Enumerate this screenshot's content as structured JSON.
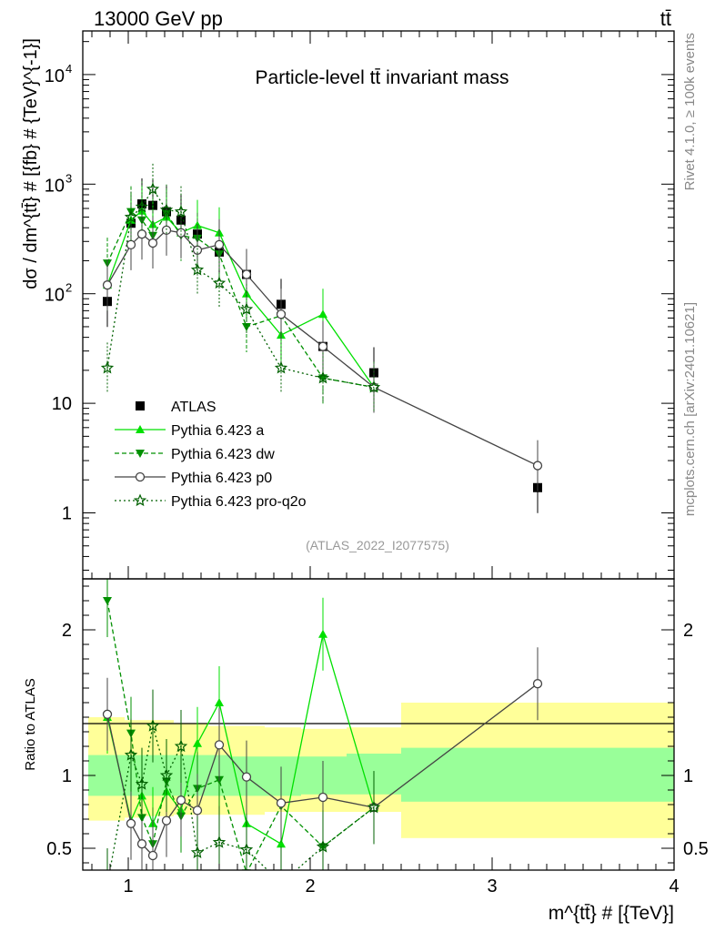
{
  "header": {
    "left": "13000 GeV pp",
    "right": "tt̄"
  },
  "side_labels": {
    "rivet": "Rivet 4.1.0, ≥ 100k events",
    "mcplots": "mcplots.cern.ch [arXiv:2401.10621]"
  },
  "chart_data": {
    "type": "scatter",
    "title": "Particle-level tt̄ invariant mass",
    "analysis_label": "(ATLAS_2022_I2077575)",
    "xlabel": "m^{tt̄} # [{TeV}]",
    "x_ticks": [
      "1",
      "2",
      "3",
      "4"
    ],
    "xlim": [
      0.75,
      4.0
    ],
    "grid": false,
    "legend_position": "left-middle",
    "main": {
      "ylabel": "dσ / dm^{tt̄} # [{fb} # {TeV}^{-1}]",
      "yscale": "log",
      "ylim": [
        0.25,
        25000
      ],
      "y_tick_labels": [
        "1",
        "10",
        "10^2",
        "10^3",
        "10^4"
      ],
      "series": [
        {
          "name": "ATLAS",
          "color": "#000000",
          "marker": "square",
          "x": [
            0.885,
            1.015,
            1.075,
            1.135,
            1.21,
            1.29,
            1.38,
            1.5,
            1.65,
            1.84,
            2.07,
            2.35,
            3.25
          ],
          "y": [
            85,
            440,
            660,
            640,
            560,
            470,
            350,
            240,
            150,
            80,
            33,
            19,
            1.7
          ]
        },
        {
          "name": "Pythia 6.423 a",
          "color": "#00e000",
          "marker": "triangle-up",
          "line": "solid",
          "x": [
            0.885,
            1.015,
            1.075,
            1.135,
            1.21,
            1.29,
            1.38,
            1.5,
            1.65,
            1.84,
            2.07,
            2.35
          ],
          "y": [
            120,
            470,
            570,
            430,
            500,
            360,
            420,
            360,
            100,
            42,
            65,
            14
          ]
        },
        {
          "name": "Pythia 6.423 dw",
          "color": "#009000",
          "marker": "triangle-down",
          "line": "dashed",
          "x": [
            0.885,
            1.015,
            1.075,
            1.135,
            1.21,
            1.29,
            1.38,
            1.5,
            1.65,
            1.84,
            2.07,
            2.35
          ],
          "y": [
            190,
            560,
            470,
            340,
            540,
            340,
            320,
            230,
            50,
            63,
            17,
            14
          ]
        },
        {
          "name": "Pythia 6.423 p0",
          "color": "#444444",
          "marker": "open-circle",
          "line": "solid",
          "x": [
            0.885,
            1.015,
            1.075,
            1.135,
            1.21,
            1.29,
            1.38,
            1.5,
            1.65,
            1.84,
            2.07,
            2.35,
            3.25
          ],
          "y": [
            120,
            280,
            350,
            290,
            380,
            360,
            250,
            280,
            150,
            65,
            33,
            14,
            2.7
          ]
        },
        {
          "name": "Pythia 6.423 pro-q2o",
          "color": "#006000",
          "marker": "star",
          "line": "dotted",
          "x": [
            0.885,
            1.015,
            1.075,
            1.135,
            1.21,
            1.29,
            1.38,
            1.5,
            1.65,
            1.84,
            2.07,
            2.35
          ],
          "y": [
            21,
            500,
            620,
            900,
            580,
            560,
            165,
            125,
            72,
            21,
            17,
            14
          ]
        }
      ]
    },
    "ratio": {
      "ylabel": "Ratio to ATLAS",
      "ylim": [
        0.35,
        2.35
      ],
      "y_tick_labels": [
        "0.5",
        "1",
        "2"
      ],
      "bands": {
        "bin_edges": [
          0.78,
          0.98,
          1.06,
          1.11,
          1.17,
          1.25,
          1.33,
          1.44,
          1.57,
          1.75,
          1.95,
          2.2,
          2.5,
          4.0
        ],
        "inner_low": [
          0.86,
          0.86,
          0.86,
          0.86,
          0.86,
          0.86,
          0.86,
          0.86,
          0.86,
          0.86,
          0.87,
          0.87,
          0.82
        ],
        "inner_high": [
          1.14,
          1.14,
          1.14,
          1.14,
          1.14,
          1.14,
          1.14,
          1.14,
          1.13,
          1.13,
          1.13,
          1.15,
          1.19
        ],
        "outer_low": [
          0.69,
          0.71,
          0.72,
          0.72,
          0.72,
          0.73,
          0.73,
          0.73,
          0.73,
          0.75,
          0.75,
          0.75,
          0.57
        ],
        "outer_high": [
          1.4,
          1.38,
          1.38,
          1.38,
          1.38,
          1.36,
          1.36,
          1.34,
          1.34,
          1.33,
          1.32,
          1.33,
          1.5
        ],
        "inner_color": "#99ff99",
        "outer_color": "#ffff99"
      },
      "series": [
        {
          "name": "Pythia 6.423 a",
          "x": [
            0.885,
            1.015,
            1.075,
            1.135,
            1.21,
            1.29,
            1.38,
            1.5,
            1.65,
            1.84,
            2.07,
            2.35
          ],
          "y": [
            1.4,
            0.69,
            0.86,
            0.67,
            0.89,
            0.76,
            1.22,
            1.5,
            0.67,
            0.53,
            1.97,
            0.78
          ]
        },
        {
          "name": "Pythia 6.423 dw",
          "x": [
            0.885,
            1.015,
            1.075,
            1.135,
            1.21,
            1.29,
            1.38,
            1.5,
            1.65,
            1.84,
            2.07,
            2.35
          ],
          "y": [
            2.2,
            1.29,
            0.71,
            0.53,
            0.96,
            0.72,
            0.91,
            0.97,
            0.33,
            0.79,
            0.51,
            0.78
          ]
        },
        {
          "name": "Pythia 6.423 p0",
          "x": [
            0.885,
            1.015,
            1.075,
            1.135,
            1.21,
            1.29,
            1.38,
            1.5,
            1.65,
            1.84,
            2.07,
            2.35,
            3.25
          ],
          "y": [
            1.42,
            0.67,
            0.53,
            0.45,
            0.69,
            0.83,
            0.76,
            1.21,
            0.99,
            0.81,
            0.85,
            0.78,
            1.63
          ]
        },
        {
          "name": "Pythia 6.423 pro-q2o",
          "x": [
            0.885,
            1.015,
            1.075,
            1.135,
            1.21,
            1.29,
            1.38,
            1.5,
            1.65,
            1.84,
            2.07,
            2.35
          ],
          "y": [
            0.25,
            1.14,
            0.94,
            1.34,
            1.0,
            1.2,
            0.47,
            0.54,
            0.49,
            0.26,
            0.51,
            0.78
          ]
        }
      ]
    }
  }
}
